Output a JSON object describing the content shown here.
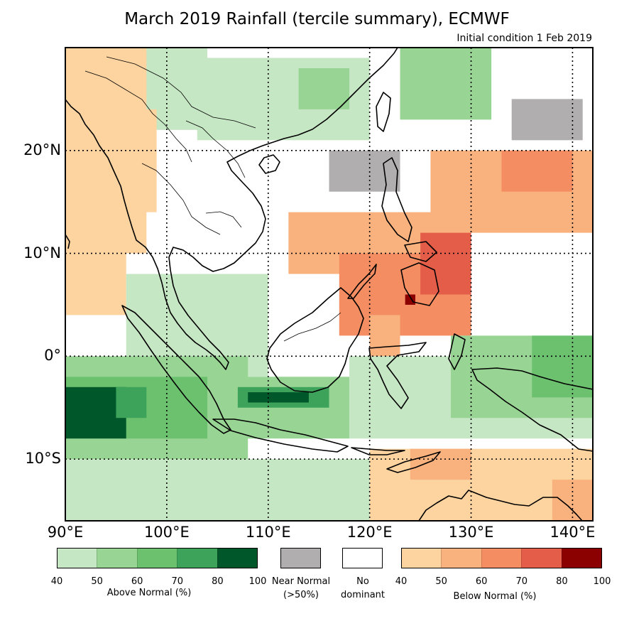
{
  "title": "March 2019 Rainfall (tercile summary), ECMWF",
  "subtitle": "Initial condition 1 Feb 2019",
  "axes": {
    "lon_labels": [
      "90°E",
      "100°E",
      "110°E",
      "120°E",
      "130°E",
      "140°E"
    ],
    "lon_values": [
      90,
      100,
      110,
      120,
      130,
      140
    ],
    "lat_labels": [
      "20°N",
      "10°N",
      "0°",
      "10°S"
    ],
    "lat_values": [
      20,
      10,
      0,
      -10
    ],
    "lon_range": [
      90,
      142
    ],
    "lat_range": [
      -16,
      30
    ]
  },
  "legend": {
    "above": {
      "label": "Above Normal (%)",
      "ticks": [
        "40",
        "50",
        "60",
        "70",
        "80",
        "100"
      ],
      "colors": [
        "#c6e7c4",
        "#98d493",
        "#6cc16f",
        "#3ea35a",
        "#00582a"
      ]
    },
    "near": {
      "label_line1": "Near Normal",
      "label_line2": "(>50%)",
      "color": "#b0aeae"
    },
    "none": {
      "label_line1": "No",
      "label_line2": "dominant",
      "color": "#ffffff"
    },
    "below": {
      "label": "Below Normal (%)",
      "ticks": [
        "40",
        "50",
        "60",
        "70",
        "80",
        "100"
      ],
      "colors": [
        "#fdd3a0",
        "#f9b27e",
        "#f48d62",
        "#e45d49",
        "#8b0000"
      ]
    }
  },
  "map_regions": [
    {
      "category": "above",
      "level": 1,
      "lon": [
        95,
        104
      ],
      "lat": [
        22,
        30
      ]
    },
    {
      "category": "above",
      "level": 1,
      "lon": [
        103,
        120
      ],
      "lat": [
        21,
        29
      ]
    },
    {
      "category": "above",
      "level": 2,
      "lon": [
        113,
        118
      ],
      "lat": [
        24,
        28
      ]
    },
    {
      "category": "above",
      "level": 2,
      "lon": [
        123,
        132
      ],
      "lat": [
        23,
        30
      ]
    },
    {
      "category": "below",
      "level": 1,
      "lon": [
        90,
        98
      ],
      "lat": [
        10,
        30
      ]
    },
    {
      "category": "below",
      "level": 1,
      "lon": [
        94,
        99
      ],
      "lat": [
        14,
        24
      ]
    },
    {
      "category": "near",
      "level": 1,
      "lon": [
        116,
        123
      ],
      "lat": [
        16,
        20
      ]
    },
    {
      "category": "near",
      "level": 1,
      "lon": [
        134,
        141
      ],
      "lat": [
        21,
        25
      ]
    },
    {
      "category": "below",
      "level": 2,
      "lon": [
        126,
        142
      ],
      "lat": [
        12,
        20
      ]
    },
    {
      "category": "below",
      "level": 3,
      "lon": [
        133,
        140
      ],
      "lat": [
        16,
        20
      ]
    },
    {
      "category": "below",
      "level": 2,
      "lon": [
        112,
        130
      ],
      "lat": [
        8,
        14
      ]
    },
    {
      "category": "below",
      "level": 3,
      "lon": [
        117,
        130
      ],
      "lat": [
        2,
        10
      ]
    },
    {
      "category": "below",
      "level": 4,
      "lon": [
        125,
        130
      ],
      "lat": [
        6,
        12
      ]
    },
    {
      "category": "below",
      "level": 5,
      "lon": [
        123.5,
        124.5
      ],
      "lat": [
        5,
        6
      ]
    },
    {
      "category": "below",
      "level": 2,
      "lon": [
        120,
        123
      ],
      "lat": [
        -2,
        4
      ]
    },
    {
      "category": "below",
      "level": 1,
      "lon": [
        90,
        96
      ],
      "lat": [
        4,
        10
      ]
    },
    {
      "category": "above",
      "level": 1,
      "lon": [
        96,
        110
      ],
      "lat": [
        -2,
        8
      ]
    },
    {
      "category": "above",
      "level": 2,
      "lon": [
        90,
        108
      ],
      "lat": [
        -10,
        0
      ]
    },
    {
      "category": "above",
      "level": 3,
      "lon": [
        90,
        104
      ],
      "lat": [
        -8,
        -2
      ]
    },
    {
      "category": "above",
      "level": 5,
      "lon": [
        90,
        96
      ],
      "lat": [
        -8,
        -3
      ]
    },
    {
      "category": "above",
      "level": 4,
      "lon": [
        95,
        98
      ],
      "lat": [
        -6,
        -3
      ]
    },
    {
      "category": "above",
      "level": 2,
      "lon": [
        106,
        118
      ],
      "lat": [
        -8,
        -2
      ]
    },
    {
      "category": "above",
      "level": 4,
      "lon": [
        107,
        116
      ],
      "lat": [
        -5,
        -3
      ]
    },
    {
      "category": "above",
      "level": 5,
      "lon": [
        108,
        114
      ],
      "lat": [
        -4.5,
        -3.5
      ]
    },
    {
      "category": "above",
      "level": 1,
      "lon": [
        90,
        120
      ],
      "lat": [
        -16,
        -10
      ]
    },
    {
      "category": "above",
      "level": 1,
      "lon": [
        118,
        142
      ],
      "lat": [
        -8,
        0
      ]
    },
    {
      "category": "above",
      "level": 2,
      "lon": [
        128,
        142
      ],
      "lat": [
        -6,
        2
      ]
    },
    {
      "category": "above",
      "level": 3,
      "lon": [
        136,
        142
      ],
      "lat": [
        -4,
        2
      ]
    },
    {
      "category": "below",
      "level": 1,
      "lon": [
        120,
        142
      ],
      "lat": [
        -16,
        -9
      ]
    },
    {
      "category": "below",
      "level": 2,
      "lon": [
        124,
        130
      ],
      "lat": [
        -12,
        -9
      ]
    },
    {
      "category": "below",
      "level": 2,
      "lon": [
        138,
        142
      ],
      "lat": [
        -16,
        -12
      ]
    }
  ]
}
